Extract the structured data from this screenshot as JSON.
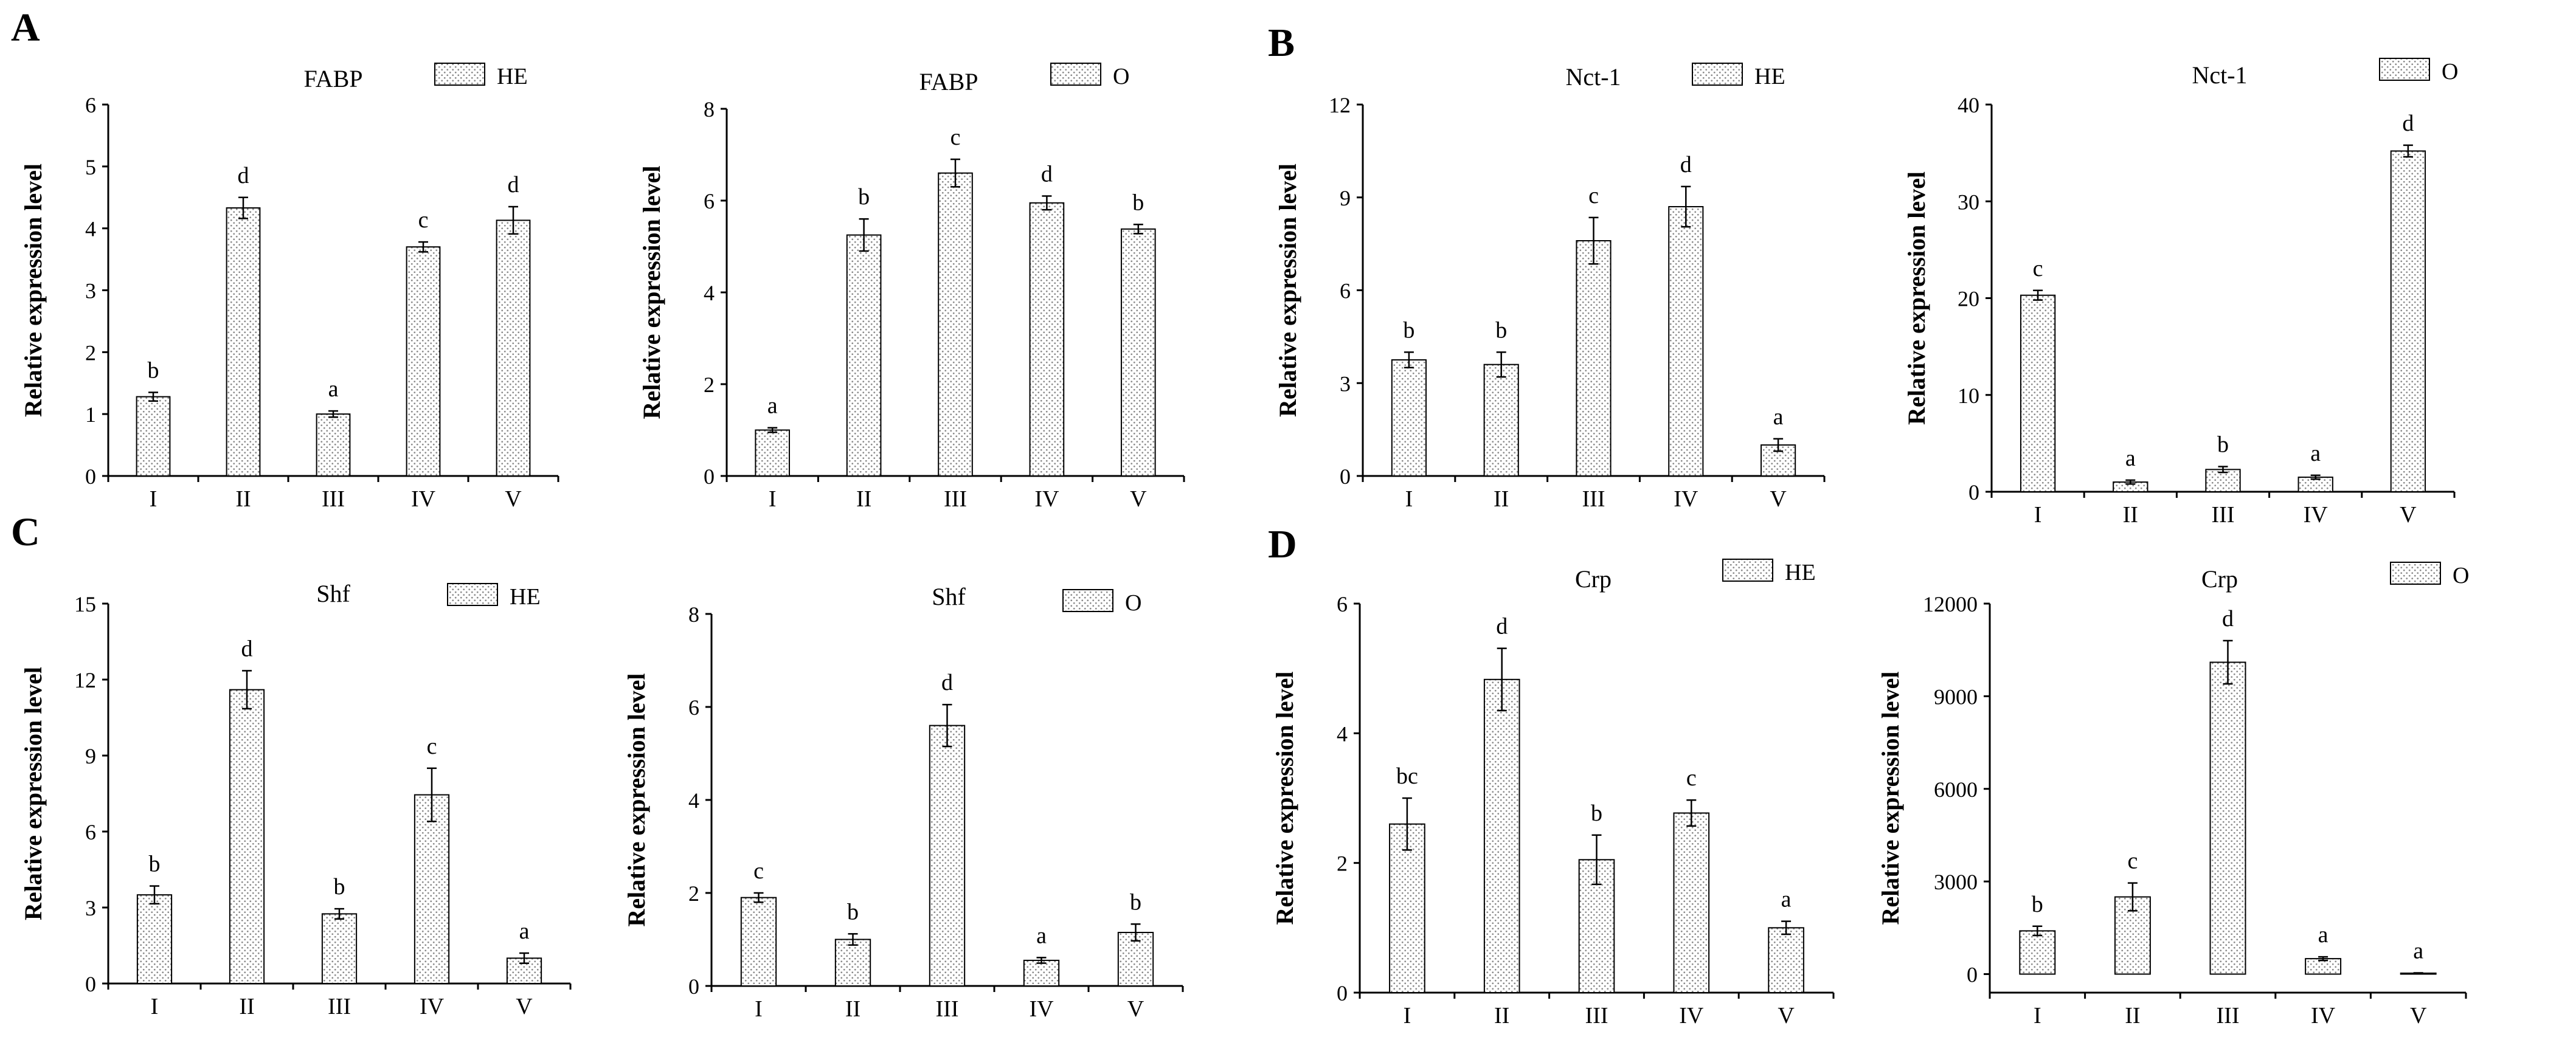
{
  "figure": {
    "colors": {
      "bar_fill": "#ffffff",
      "bar_dot": "#8a8a8a",
      "axis": "#000000",
      "text": "#000000"
    },
    "panels": [
      {
        "letter": "A",
        "chart_indices": [
          0,
          1
        ]
      },
      {
        "letter": "B",
        "chart_indices": [
          2,
          3
        ]
      },
      {
        "letter": "C",
        "chart_indices": [
          4,
          5
        ]
      },
      {
        "letter": "D",
        "chart_indices": [
          6,
          7
        ]
      }
    ]
  },
  "chart_data": [
    {
      "type": "bar",
      "title": "FABP",
      "legend": "HE",
      "ylabel": "Relative expression level",
      "categories": [
        "I",
        "II",
        "III",
        "IV",
        "V"
      ],
      "values": [
        1.28,
        4.33,
        1.0,
        3.7,
        4.13
      ],
      "errors": [
        0.07,
        0.17,
        0.05,
        0.08,
        0.22
      ],
      "labels": [
        "b",
        "d",
        "a",
        "c",
        "d"
      ],
      "ylim": [
        0,
        6
      ],
      "yticks": [
        0,
        1,
        2,
        3,
        4,
        5,
        6
      ]
    },
    {
      "type": "bar",
      "title": "FABP",
      "legend": "O",
      "ylabel": "Relative expression level",
      "categories": [
        "I",
        "II",
        "III",
        "IV",
        "V"
      ],
      "values": [
        1.0,
        5.25,
        6.6,
        5.95,
        5.38
      ],
      "errors": [
        0.05,
        0.35,
        0.3,
        0.15,
        0.1
      ],
      "labels": [
        "a",
        "b",
        "c",
        "d",
        "b"
      ],
      "ylim": [
        0,
        8
      ],
      "yticks": [
        0,
        2,
        4,
        6,
        8
      ]
    },
    {
      "type": "bar",
      "title": "Nct-1",
      "legend": "HE",
      "ylabel": "Relative expression level",
      "categories": [
        "I",
        "II",
        "III",
        "IV",
        "V"
      ],
      "values": [
        3.75,
        3.6,
        7.6,
        8.7,
        1.0
      ],
      "errors": [
        0.25,
        0.4,
        0.75,
        0.65,
        0.2
      ],
      "labels": [
        "b",
        "b",
        "c",
        "d",
        "a"
      ],
      "ylim": [
        0,
        12
      ],
      "yticks": [
        0,
        3,
        6,
        9,
        12
      ]
    },
    {
      "type": "bar",
      "title": "Nct-1",
      "legend": "O",
      "ylabel": "Relative expression level",
      "categories": [
        "I",
        "II",
        "III",
        "IV",
        "V"
      ],
      "values": [
        20.3,
        1.0,
        2.3,
        1.5,
        35.2
      ],
      "errors": [
        0.5,
        0.2,
        0.3,
        0.2,
        0.6
      ],
      "labels": [
        "c",
        "a",
        "b",
        "a",
        "d"
      ],
      "ylim": [
        0,
        40
      ],
      "yticks": [
        0,
        10,
        20,
        30,
        40
      ]
    },
    {
      "type": "bar",
      "title": "Shf",
      "legend": "HE",
      "ylabel": "Relative expression level",
      "categories": [
        "I",
        "II",
        "III",
        "IV",
        "V"
      ],
      "values": [
        3.5,
        11.6,
        2.75,
        7.45,
        1.0
      ],
      "errors": [
        0.35,
        0.75,
        0.2,
        1.05,
        0.2
      ],
      "labels": [
        "b",
        "d",
        "b",
        "c",
        "a"
      ],
      "ylim": [
        0,
        15
      ],
      "yticks": [
        0,
        3,
        6,
        9,
        12,
        15
      ]
    },
    {
      "type": "bar",
      "title": "Shf",
      "legend": "O",
      "ylabel": "Relative expression level",
      "categories": [
        "I",
        "II",
        "III",
        "IV",
        "V"
      ],
      "values": [
        1.9,
        1.0,
        5.6,
        0.55,
        1.15
      ],
      "errors": [
        0.1,
        0.12,
        0.45,
        0.06,
        0.18
      ],
      "labels": [
        "c",
        "b",
        "d",
        "a",
        "b"
      ],
      "ylim": [
        0,
        8
      ],
      "yticks": [
        0,
        2,
        4,
        6,
        8
      ]
    },
    {
      "type": "bar",
      "title": "Crp",
      "legend": "HE",
      "ylabel": "Relative expression level",
      "categories": [
        "I",
        "II",
        "III",
        "IV",
        "V"
      ],
      "values": [
        2.6,
        4.83,
        2.05,
        2.77,
        1.0
      ],
      "errors": [
        0.4,
        0.48,
        0.38,
        0.2,
        0.1
      ],
      "labels": [
        "bc",
        "d",
        "b",
        "c",
        "a"
      ],
      "ylim": [
        0,
        6
      ],
      "yticks": [
        0,
        2,
        4,
        6
      ]
    },
    {
      "type": "bar",
      "title": "Crp",
      "legend": "O",
      "ylabel": "Relative expression level",
      "categories": [
        "I",
        "II",
        "III",
        "IV",
        "V"
      ],
      "values": [
        1400,
        2500,
        10100,
        500,
        30
      ],
      "errors": [
        150,
        450,
        700,
        60,
        10
      ],
      "labels": [
        "b",
        "c",
        "d",
        "a",
        "a"
      ],
      "ylim": [
        -600,
        12000
      ],
      "yticks": [
        0,
        3000,
        6000,
        9000,
        12000
      ]
    }
  ]
}
